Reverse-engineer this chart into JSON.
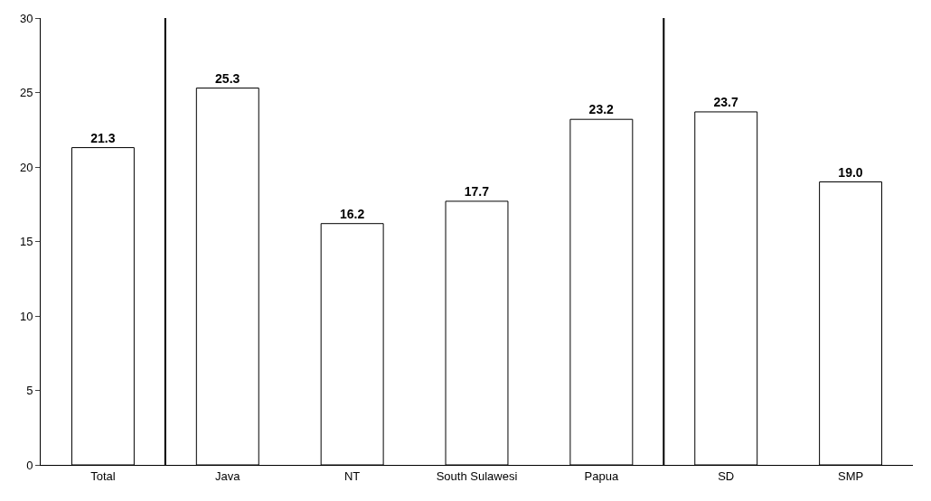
{
  "chart_data": {
    "type": "bar",
    "categories": [
      "Total",
      "Java",
      "NT",
      "South Sulawesi",
      "Papua",
      "SD",
      "SMP"
    ],
    "values": [
      21.3,
      25.3,
      16.2,
      17.7,
      23.2,
      23.7,
      19.0
    ],
    "value_labels": [
      "21.3",
      "25.3",
      "16.2",
      "17.7",
      "23.2",
      "23.7",
      "19.0"
    ],
    "color": "#ffffff",
    "ylim": [
      0,
      30
    ],
    "yticks": [
      0,
      5,
      10,
      15,
      20,
      25,
      30
    ],
    "legend": false
  }
}
